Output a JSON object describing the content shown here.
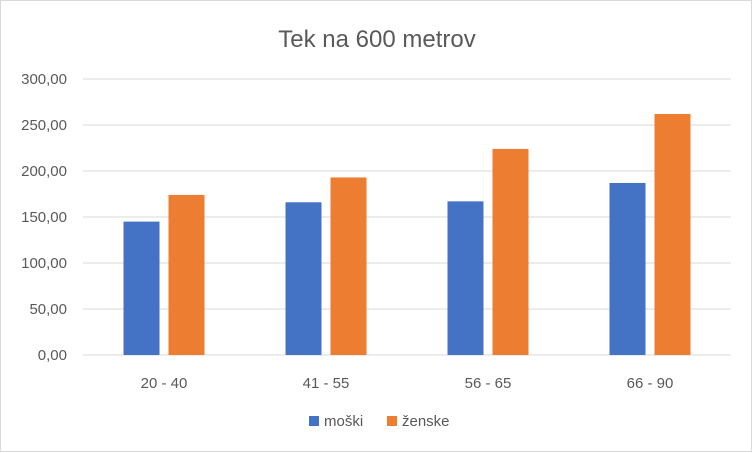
{
  "chart_data": {
    "type": "bar",
    "title": "Tek na 600 metrov",
    "xlabel": "",
    "ylabel": "",
    "categories": [
      "20 - 40",
      "41 - 55",
      "56 - 65",
      "66 - 90"
    ],
    "series": [
      {
        "name": "moški",
        "color": "#4472c4",
        "values": [
          145,
          166,
          167,
          187
        ]
      },
      {
        "name": "ženske",
        "color": "#ed7d31",
        "values": [
          174,
          193,
          224,
          262
        ]
      }
    ],
    "ylim": [
      0,
      300
    ],
    "yticks": [
      "0,00",
      "50,00",
      "100,00",
      "150,00",
      "200,00",
      "250,00",
      "300,00"
    ],
    "grid": true,
    "legend_position": "bottom"
  }
}
